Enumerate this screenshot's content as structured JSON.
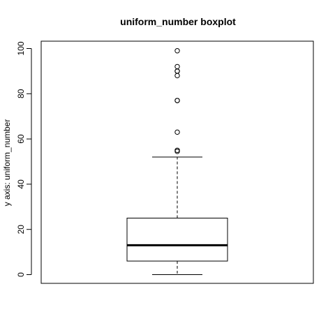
{
  "chart_data": {
    "type": "boxplot",
    "title": "uniform_number boxplot",
    "xlabel": "",
    "ylabel": "y axis: uniform_number",
    "ylim": [
      -4,
      103
    ],
    "yticks": [
      0,
      20,
      40,
      60,
      80,
      100
    ],
    "ytick_labels": [
      "0",
      "20",
      "40",
      "60",
      "80",
      "100"
    ],
    "box": {
      "min_whisker": 0,
      "q1": 6,
      "median": 13,
      "q3": 25,
      "max_whisker": 52
    },
    "outliers": [
      54.5,
      55,
      63,
      77,
      77,
      88,
      90,
      90,
      92,
      99
    ],
    "colors": {
      "line": "#000000",
      "background": "#ffffff"
    }
  }
}
